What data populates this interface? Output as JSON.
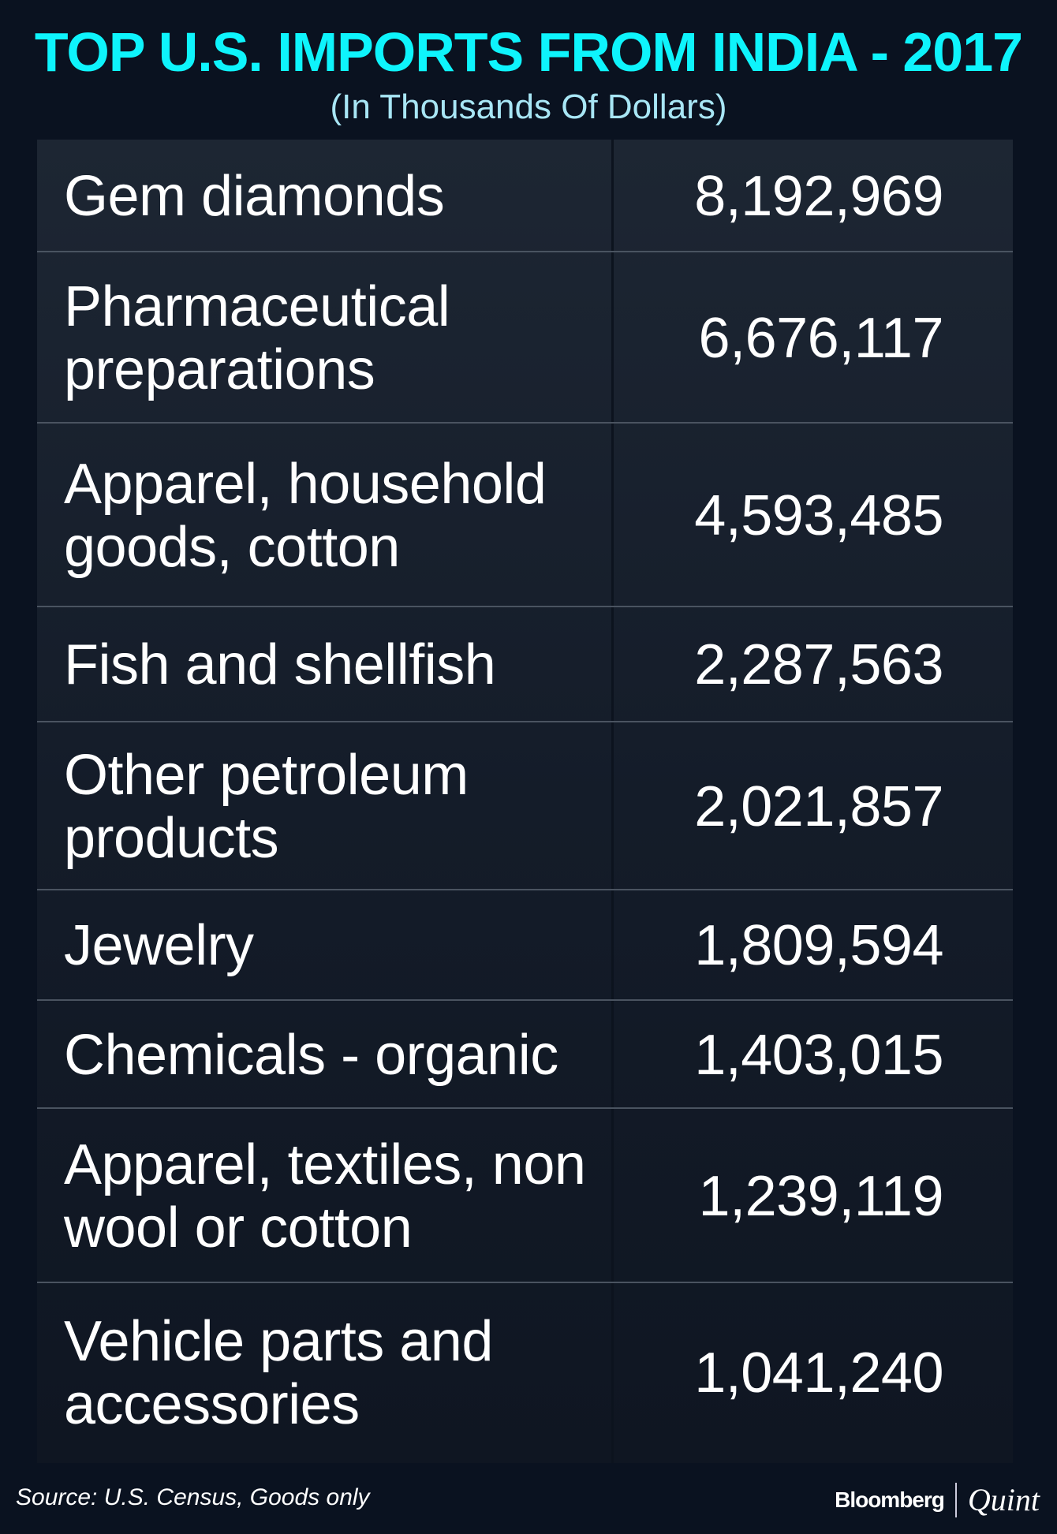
{
  "header": {
    "title": "TOP U.S. IMPORTS FROM INDIA - 2017",
    "subtitle": "(In Thousands Of Dollars)"
  },
  "colors": {
    "background": "#0a1220",
    "title": "#0ef4fc",
    "subtitle": "#a8e6f5",
    "text": "#ffffff"
  },
  "chart_data": {
    "type": "table",
    "title": "TOP U.S. IMPORTS FROM INDIA - 2017",
    "subtitle": "(In Thousands Of Dollars)",
    "rows": [
      {
        "label": "Gem diamonds",
        "value": "8,192,969"
      },
      {
        "label": "Pharmaceutical preparations",
        "value": "6,676,117"
      },
      {
        "label": "Apparel, household goods, cotton",
        "value": "4,593,485"
      },
      {
        "label": "Fish and shellfish",
        "value": "2,287,563"
      },
      {
        "label": "Other petroleum products",
        "value": "2,021,857"
      },
      {
        "label": "Jewelry",
        "value": "1,809,594"
      },
      {
        "label": "Chemicals - organic",
        "value": "1,403,015"
      },
      {
        "label": "Apparel, textiles, non wool or cotton",
        "value": "1,239,119"
      },
      {
        "label": "Vehicle parts and accessories",
        "value": "1,041,240"
      }
    ]
  },
  "footer": {
    "source": "Source: U.S. Census, Goods only",
    "logo_left": "Bloomberg",
    "logo_right": "Quint"
  }
}
